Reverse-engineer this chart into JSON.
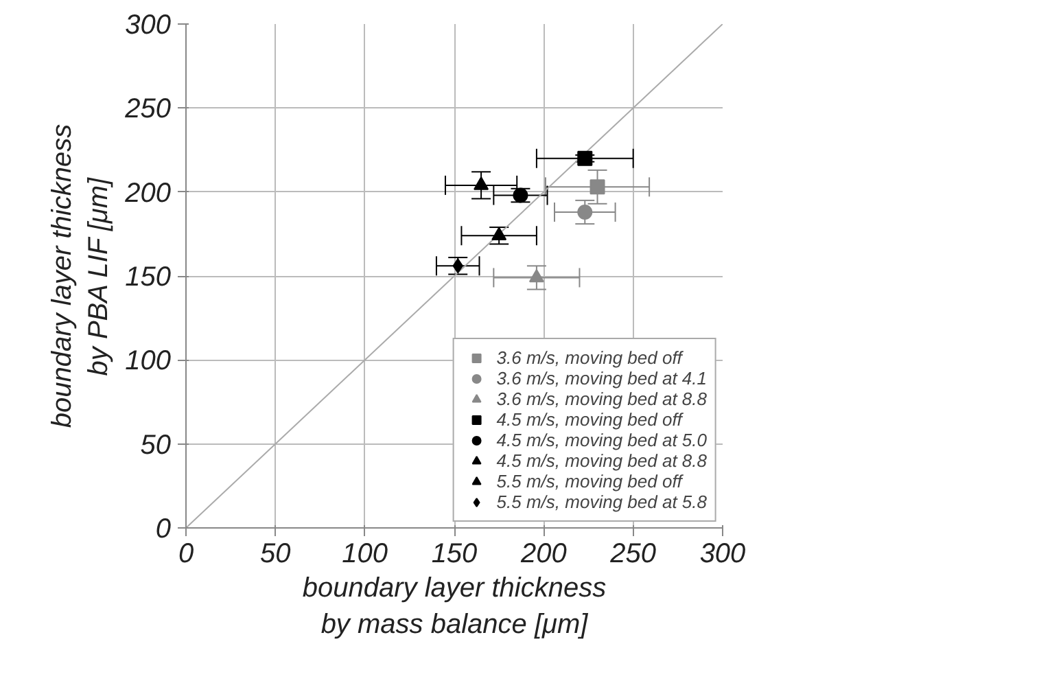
{
  "chart_data": {
    "type": "scatter",
    "xlabel": "boundary layer thickness\nby mass balance [μm]",
    "ylabel": "boundary layer thickness\nby PBA LIF [μm]",
    "xlim": [
      0,
      300
    ],
    "ylim": [
      0,
      300
    ],
    "xticks": [
      0,
      50,
      100,
      150,
      200,
      250,
      300
    ],
    "yticks": [
      0,
      50,
      100,
      150,
      200,
      250,
      300
    ],
    "grid": true,
    "legend": "bottom right",
    "series": [
      {
        "type": "line",
        "color": "#aaaaaa",
        "x": [
          0,
          300
        ],
        "values": [
          0,
          300
        ]
      },
      {
        "name": "3.6 m/s, moving bed off",
        "color": "#888888",
        "marker": "square",
        "x": [
          230
        ],
        "values": [
          203
        ],
        "errors": [
          10
        ],
        "xerrors": [
          29
        ]
      },
      {
        "name": "3.6 m/s, moving bed at 4.1",
        "color": "#888888",
        "marker": "circle",
        "x": [
          223
        ],
        "values": [
          188
        ],
        "errors": [
          7
        ],
        "xerrors": [
          17
        ]
      },
      {
        "name": "3.6 m/s, moving bed at 8.8",
        "color": "#888888",
        "marker": "triangle",
        "x": [
          196
        ],
        "values": [
          149
        ],
        "errors": [
          7
        ],
        "xerrors": [
          24
        ]
      },
      {
        "name": "4.5 m/s, moving bed off",
        "color": "#000000",
        "marker": "square",
        "x": [
          223
        ],
        "values": [
          220
        ],
        "errors": [
          2
        ],
        "xerrors": [
          27
        ]
      },
      {
        "name": "4.5 m/s, moving bed at 5.0",
        "color": "#000000",
        "marker": "circle",
        "x": [
          187
        ],
        "values": [
          198
        ],
        "errors": [
          4
        ],
        "xerrors": [
          15
        ]
      },
      {
        "name": "4.5 m/s, moving bed at 8.8",
        "color": "#000000",
        "marker": "triangle",
        "x": [
          165
        ],
        "values": [
          204
        ],
        "errors": [
          8
        ],
        "xerrors": [
          20
        ]
      },
      {
        "name": "5.5 m/s, moving bed off",
        "color": "#000000",
        "marker": "triangle",
        "x": [
          175
        ],
        "values": [
          174
        ],
        "errors": [
          5
        ],
        "xerrors": [
          21
        ]
      },
      {
        "name": "5.5 m/s, moving bed at 5.8",
        "color": "#000000",
        "marker": "diamond",
        "x": [
          152
        ],
        "values": [
          156
        ],
        "errors": [
          5
        ],
        "xerrors": [
          12
        ]
      }
    ]
  }
}
